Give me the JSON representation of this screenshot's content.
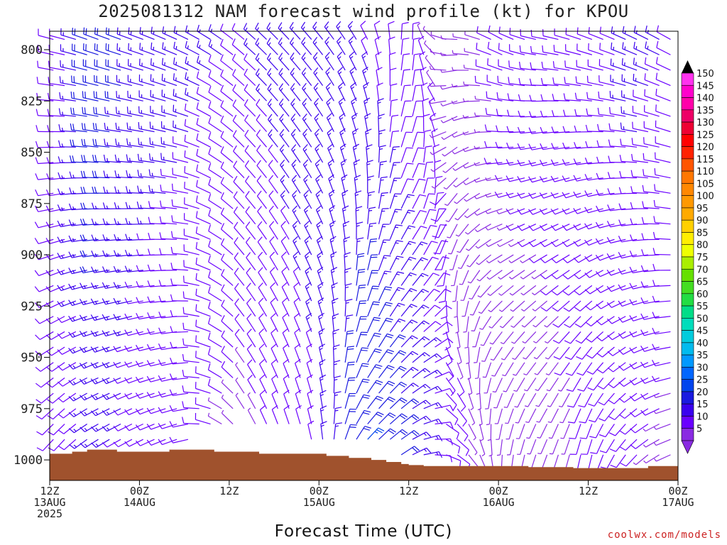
{
  "title": "2025081312 NAM forecast wind profile (kt) for KPOU",
  "x_axis_title": "Forecast Time (UTC)",
  "credit": "coolwx.com/models",
  "chart_data": {
    "type": "wind-barb time-height",
    "title": "2025081312 NAM forecast wind profile (kt) for KPOU",
    "xlabel": "Forecast Time (UTC)",
    "ylabel": "",
    "x_range_hours": [
      0,
      84
    ],
    "y_range_mb": [
      1010,
      791
    ],
    "y_ticks": [
      800,
      825,
      850,
      875,
      900,
      925,
      950,
      975,
      1000
    ],
    "x_ticks": [
      {
        "hour": 0,
        "lines": [
          "12Z",
          "13AUG",
          "2025"
        ]
      },
      {
        "hour": 12,
        "lines": [
          "00Z",
          "14AUG"
        ]
      },
      {
        "hour": 24,
        "lines": [
          "12Z"
        ]
      },
      {
        "hour": 36,
        "lines": [
          "00Z",
          "15AUG"
        ]
      },
      {
        "hour": 48,
        "lines": [
          "12Z"
        ]
      },
      {
        "hour": 60,
        "lines": [
          "00Z",
          "16AUG"
        ]
      },
      {
        "hour": 72,
        "lines": [
          "12Z"
        ]
      },
      {
        "hour": 84,
        "lines": [
          "00Z",
          "17AUG"
        ]
      }
    ],
    "surface_pressure_mb": [
      [
        0,
        997
      ],
      [
        1,
        997
      ],
      [
        3,
        996
      ],
      [
        5,
        995
      ],
      [
        9,
        996
      ],
      [
        10,
        996
      ],
      [
        16,
        995
      ],
      [
        22,
        996
      ],
      [
        28,
        997
      ],
      [
        34,
        997
      ],
      [
        37,
        998
      ],
      [
        40,
        999
      ],
      [
        43,
        1000
      ],
      [
        45,
        1001
      ],
      [
        47,
        1002
      ],
      [
        48,
        1002.5
      ],
      [
        50,
        1003
      ],
      [
        60,
        1003
      ],
      [
        64,
        1003.5
      ],
      [
        70,
        1004
      ],
      [
        76,
        1004
      ],
      [
        80,
        1003
      ],
      [
        84,
        1001
      ]
    ],
    "wind_columns": [
      {
        "hour": 2,
        "p_bottom": 995,
        "dir_low": 220,
        "dir_high": 285,
        "spd_low": 8,
        "spd_high": 12
      },
      {
        "hour": 6,
        "p_bottom": 990,
        "dir_low": 235,
        "dir_high": 290,
        "spd_low": 15,
        "spd_high": 22
      },
      {
        "hour": 12,
        "p_bottom": 992,
        "dir_low": 240,
        "dir_high": 290,
        "spd_low": 10,
        "spd_high": 16
      },
      {
        "hour": 18,
        "p_bottom": 992,
        "dir_low": 250,
        "dir_high": 295,
        "spd_low": 8,
        "spd_high": 14
      },
      {
        "hour": 26,
        "p_bottom": 982,
        "dir_low": 330,
        "dir_high": 310,
        "spd_low": 6,
        "spd_high": 12
      },
      {
        "hour": 30,
        "p_bottom": 985,
        "dir_low": 340,
        "dir_high": 315,
        "spd_low": 8,
        "spd_high": 14
      },
      {
        "hour": 36,
        "p_bottom": 993,
        "dir_low": 350,
        "dir_high": 320,
        "spd_low": 12,
        "spd_high": 16
      },
      {
        "hour": 42,
        "p_bottom": 995,
        "dir_low": 45,
        "dir_high": 330,
        "spd_low": 24,
        "spd_high": 12
      },
      {
        "hour": 48,
        "p_bottom": 998,
        "dir_low": 60,
        "dir_high": 10,
        "spd_low": 18,
        "spd_high": 8
      },
      {
        "hour": 54,
        "p_bottom": 1000,
        "dir_low": 120,
        "dir_high": 270,
        "spd_low": 8,
        "spd_high": 6
      },
      {
        "hour": 60,
        "p_bottom": 1001,
        "dir_low": 180,
        "dir_high": 300,
        "spd_low": 6,
        "spd_high": 8
      },
      {
        "hour": 66,
        "p_bottom": 1003,
        "dir_low": 200,
        "dir_high": 280,
        "spd_low": 5,
        "spd_high": 10
      },
      {
        "hour": 72,
        "p_bottom": 1004,
        "dir_low": 190,
        "dir_high": 290,
        "spd_low": 8,
        "spd_high": 10
      },
      {
        "hour": 78,
        "p_bottom": 1004,
        "dir_low": 220,
        "dir_high": 295,
        "spd_low": 8,
        "spd_high": 14
      },
      {
        "hour": 84,
        "p_bottom": 1001,
        "dir_low": 250,
        "dir_high": 300,
        "spd_low": 6,
        "spd_high": 12
      }
    ],
    "colorbar": {
      "values": [
        5,
        10,
        15,
        20,
        25,
        30,
        35,
        40,
        45,
        50,
        55,
        60,
        65,
        70,
        75,
        80,
        85,
        90,
        95,
        100,
        105,
        110,
        115,
        120,
        125,
        130,
        135,
        140,
        145,
        150
      ],
      "colors": [
        "#8a2be2",
        "#6a00ff",
        "#3a00ee",
        "#1a1ae0",
        "#0044ee",
        "#0066ff",
        "#0099ff",
        "#00bbee",
        "#00ccdd",
        "#00ddbb",
        "#00dd88",
        "#22dd44",
        "#44dd22",
        "#66e000",
        "#aaee00",
        "#eeff00",
        "#ffee00",
        "#ffd000",
        "#ffaa00",
        "#ff9900",
        "#ff8800",
        "#ff7700",
        "#ff5500",
        "#ff2200",
        "#ff0000",
        "#ee0033",
        "#ee0066",
        "#ff00aa",
        "#ff00cc",
        "#ff33ee"
      ],
      "min_arrow_color": "#8a2be2",
      "max_arrow_color": "#000000"
    },
    "terrain_color": "#a0522d",
    "background": "#ffffff"
  }
}
